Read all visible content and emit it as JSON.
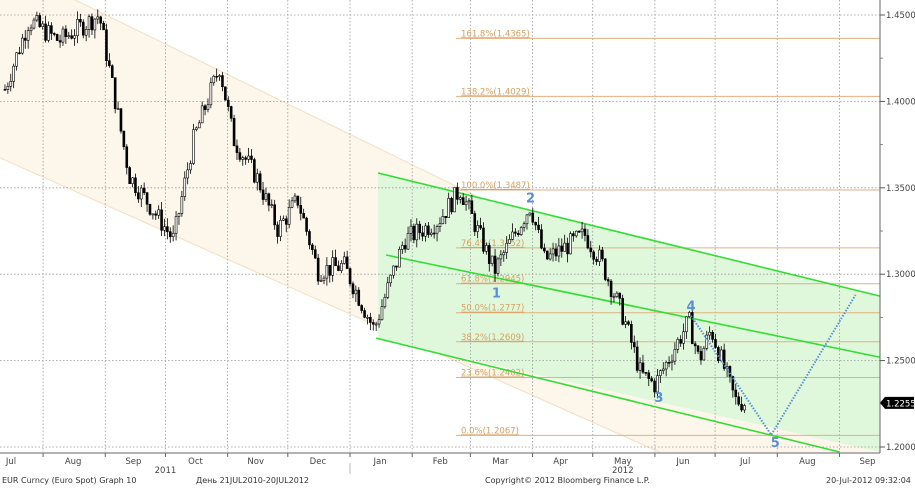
{
  "chart_data": {
    "type": "candlestick",
    "title": "",
    "y_axis": {
      "position": "right",
      "range": [
        1.195,
        1.458
      ],
      "ticks": [
        "1.2000",
        "1.2500",
        "1.3000",
        "1.3500",
        "1.4000",
        "1.4500"
      ]
    },
    "x_axis": {
      "months": [
        {
          "label": "Jul",
          "date": "2011-07-16"
        },
        {
          "label": "Aug",
          "date": "2011-08-16"
        },
        {
          "label": "Sep",
          "date": "2011-09-15"
        },
        {
          "label": "Oct",
          "date": "2011-10-16"
        },
        {
          "label": "Nov",
          "date": "2011-11-15"
        },
        {
          "label": "Dec",
          "date": "2011-12-16"
        },
        {
          "label": "Jan",
          "date": "2012-01-16"
        },
        {
          "label": "Feb",
          "date": "2012-02-15"
        },
        {
          "label": "Mar",
          "date": "2012-03-16"
        },
        {
          "label": "Apr",
          "date": "2012-04-15"
        },
        {
          "label": "May",
          "date": "2012-05-16"
        },
        {
          "label": "Jun",
          "date": "2012-06-15"
        },
        {
          "label": "Jul",
          "date": "2012-07-16"
        },
        {
          "label": "Aug",
          "date": "2012-08-16"
        },
        {
          "label": "Sep",
          "date": "2012-09-15"
        }
      ],
      "years": [
        {
          "label": "2011",
          "date": "2011-10-01"
        },
        {
          "label": "2012",
          "date": "2012-05-16"
        }
      ]
    },
    "grid": true,
    "price_path": [
      [
        "2011-07-13",
        1.407
      ],
      [
        "2011-07-25",
        1.447
      ],
      [
        "2011-08-09",
        1.435
      ],
      [
        "2011-08-29",
        1.45
      ],
      [
        "2011-09-13",
        1.357
      ],
      [
        "2011-10-05",
        1.32
      ],
      [
        "2011-10-15",
        1.378
      ],
      [
        "2011-10-28",
        1.42
      ],
      [
        "2011-11-04",
        1.378
      ],
      [
        "2011-11-16",
        1.355
      ],
      [
        "2011-11-26",
        1.326
      ],
      [
        "2011-12-06",
        1.343
      ],
      [
        "2011-12-16",
        1.302
      ],
      [
        "2011-12-29",
        1.305
      ],
      [
        "2012-01-13",
        1.268
      ],
      [
        "2012-01-28",
        1.32
      ],
      [
        "2012-02-14",
        1.331
      ],
      [
        "2012-02-25",
        1.349
      ],
      [
        "2012-03-13",
        1.302
      ],
      [
        "2012-03-31",
        1.34
      ],
      [
        "2012-04-07",
        1.308
      ],
      [
        "2012-04-27",
        1.323
      ],
      [
        "2012-05-05",
        1.308
      ],
      [
        "2012-05-17",
        1.273
      ],
      [
        "2012-05-25",
        1.242
      ],
      [
        "2012-06-01",
        1.236
      ],
      [
        "2012-06-18",
        1.273
      ],
      [
        "2012-06-23",
        1.25
      ],
      [
        "2012-06-29",
        1.268
      ],
      [
        "2012-07-11",
        1.227
      ],
      [
        "2012-07-17",
        1.2255
      ]
    ],
    "last_price": "1.2255",
    "fibonacci_levels": [
      {
        "label": "161.8%(1.4365)",
        "value": 1.4365
      },
      {
        "label": "138.2%(1.4029)",
        "value": 1.4029
      },
      {
        "label": "100.0%(1.3487)",
        "value": 1.3487
      },
      {
        "label": "76.4%(1.3152)",
        "value": 1.3152
      },
      {
        "label": "61.8%(1.2945)",
        "value": 1.2945
      },
      {
        "label": "50.0%(1.2777)",
        "value": 1.2777
      },
      {
        "label": "38.2%(1.2609)",
        "value": 1.2609
      },
      {
        "label": "23.6%(1.2402)",
        "value": 1.2402
      },
      {
        "label": "0.0%(1.2067)",
        "value": 1.2067
      }
    ],
    "channel": {
      "upper": [
        [
          "2012-01-15",
          1.3586
        ],
        [
          "2012-09-23",
          1.2868
        ]
      ],
      "middle": [
        [
          "2012-01-19",
          1.3111
        ],
        [
          "2012-09-23",
          1.2515
        ]
      ],
      "lower": [
        [
          "2012-01-14",
          1.263
        ],
        [
          "2012-09-01",
          1.1971
        ]
      ],
      "color": "#33dd33",
      "fill": "#dff8dc"
    },
    "outer_channel": {
      "upper": [
        [
          "2011-08-27",
          1.453
        ],
        [
          "2012-09-23",
          1.23
        ]
      ],
      "lower": [
        [
          "2011-06-20",
          1.378
        ],
        [
          "2012-05-19",
          1.205
        ]
      ],
      "fill": "#fdf6ea"
    },
    "waves": [
      {
        "label": "1",
        "date": "2012-03-14",
        "value": 1.297
      },
      {
        "label": "2",
        "date": "2012-03-31",
        "value": 1.345
      },
      {
        "label": "3",
        "date": "2012-06-03",
        "value": 1.226
      },
      {
        "label": "4",
        "date": "2012-06-19",
        "value": 1.279
      },
      {
        "label": "5",
        "date": "2012-07-31",
        "value": 1.2
      }
    ],
    "projection": [
      [
        "2012-06-19",
        1.276
      ],
      [
        "2012-07-29",
        1.207
      ],
      [
        "2012-09-09",
        1.288
      ]
    ],
    "colors": {
      "fib": "#e0b080",
      "projection": "#5a8fd8",
      "candle": "#000000"
    }
  },
  "footer": {
    "security": "EUR Curncy (Euro Spot) Graph 10",
    "range": "День 21JUL2010-20JUL2012",
    "copyright": "Copyright© 2012 Bloomberg Finance L.P.",
    "timestamp": "20-Jul-2012 09:32:04"
  }
}
